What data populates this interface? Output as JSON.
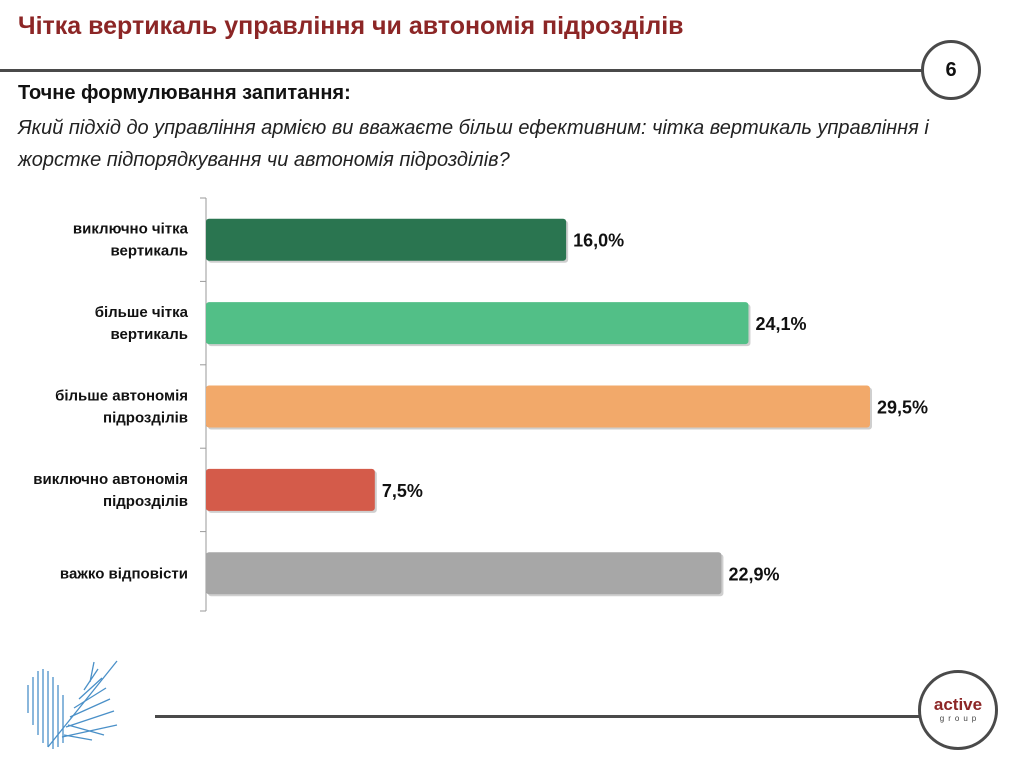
{
  "header": {
    "title": "Чітка вертикаль управління чи автономія підрозділів",
    "page_number": "6"
  },
  "question": {
    "heading": "Точне формулювання запитання:",
    "text": " Який підхід до управління армією ви вважаєте більш ефективним: чітка вертикаль управління і жорстке підпорядкування чи автономія підрозділів?"
  },
  "chart_data": {
    "type": "bar",
    "orientation": "horizontal",
    "categories": [
      [
        "виключно чітка",
        "вертикаль"
      ],
      [
        "більше чітка",
        "вертикаль"
      ],
      [
        "більше автономія",
        "підрозділів"
      ],
      [
        "виключно автономія",
        "підрозділів"
      ],
      [
        "важко відповісти"
      ]
    ],
    "values": [
      16.0,
      24.1,
      29.5,
      7.5,
      22.9
    ],
    "value_labels": [
      "16,0%",
      "24,1%",
      "29,5%",
      "7,5%",
      "22,9%"
    ],
    "colors": [
      "#2a7550",
      "#52bf87",
      "#f2a96a",
      "#d45b4a",
      "#a7a7a7"
    ],
    "xlim": [
      0,
      30
    ],
    "unit": "%",
    "grid": false
  },
  "footer": {
    "logo_main": "active",
    "logo_sub": "group"
  }
}
